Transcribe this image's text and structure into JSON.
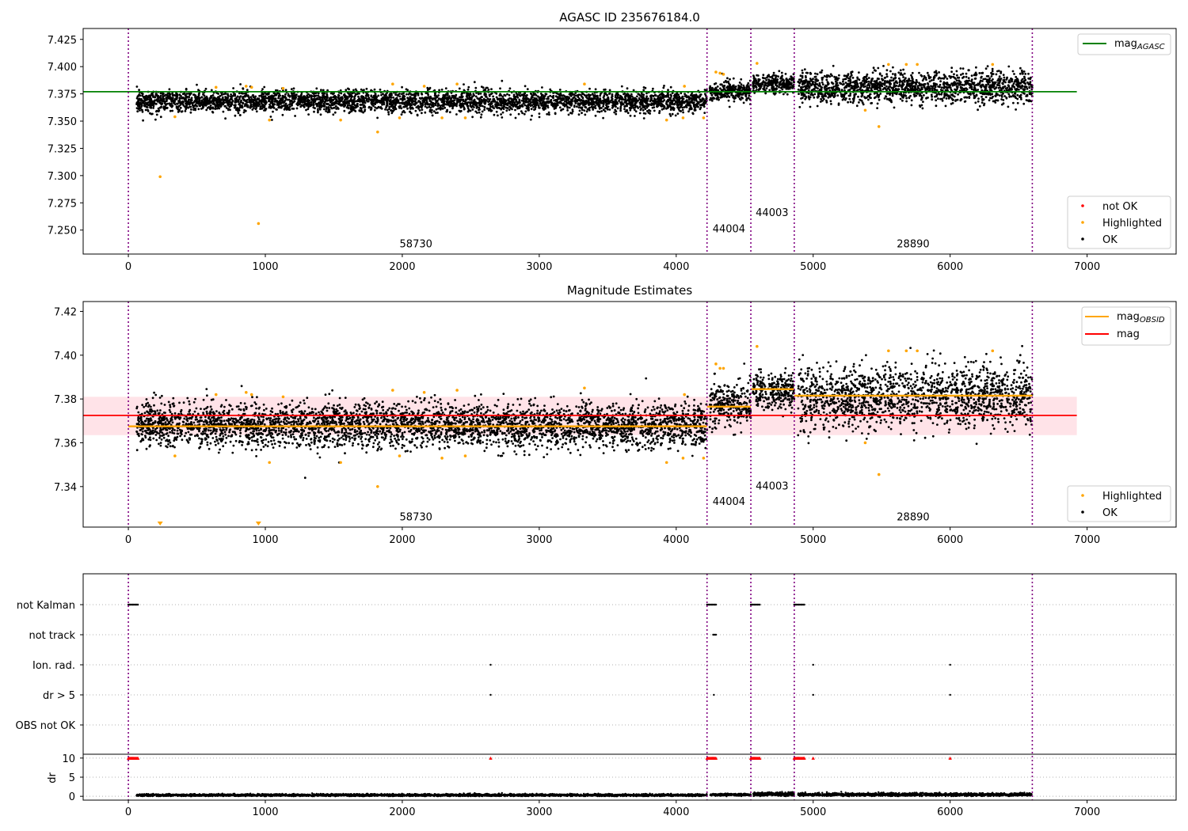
{
  "chart_data": [
    {
      "type": "scatter",
      "title": "AGASC ID 235676184.0",
      "xlim": [
        -330,
        7650
      ],
      "ylim": [
        7.228,
        7.435
      ],
      "x_ticks": [
        "0",
        "1000",
        "2000",
        "3000",
        "4000",
        "5000",
        "6000",
        "7000"
      ],
      "y_ticks": [
        "7.250",
        "7.275",
        "7.300",
        "7.325",
        "7.350",
        "7.375",
        "7.400",
        "7.425"
      ],
      "y_tick_values": [
        7.25,
        7.275,
        7.3,
        7.325,
        7.35,
        7.375,
        7.4,
        7.425
      ],
      "grid": false,
      "obs_boundaries": [
        0,
        4225,
        4545,
        4862,
        6600
      ],
      "obs_labels": [
        {
          "text": "58730",
          "x": 2100,
          "y": 7.234
        },
        {
          "text": "44004",
          "x": 4385,
          "y": 7.248
        },
        {
          "text": "44003",
          "x": 4700,
          "y": 7.263
        },
        {
          "text": "28890",
          "x": 5730,
          "y": 7.234
        }
      ],
      "segments": [
        {
          "x0": 60,
          "x1": 4225,
          "center": 7.368,
          "spread": 0.005
        },
        {
          "x0": 4245,
          "x1": 4545,
          "center": 7.377,
          "spread": 0.005
        },
        {
          "x0": 4560,
          "x1": 4862,
          "center": 7.384,
          "spread": 0.004
        },
        {
          "x0": 4890,
          "x1": 6600,
          "center": 7.381,
          "spread": 0.007
        }
      ],
      "lines": [
        {
          "name": "mag_AGASC",
          "y": 7.377,
          "x0": -330,
          "x1": 6925,
          "color": "#008000"
        }
      ],
      "highlighted": [
        {
          "x": 232,
          "y": 7.299
        },
        {
          "x": 340,
          "y": 7.354
        },
        {
          "x": 640,
          "y": 7.381
        },
        {
          "x": 860,
          "y": 7.382
        },
        {
          "x": 900,
          "y": 7.381
        },
        {
          "x": 950,
          "y": 7.256
        },
        {
          "x": 1030,
          "y": 7.351
        },
        {
          "x": 1130,
          "y": 7.38
        },
        {
          "x": 1550,
          "y": 7.351
        },
        {
          "x": 1820,
          "y": 7.34
        },
        {
          "x": 1930,
          "y": 7.384
        },
        {
          "x": 1980,
          "y": 7.353
        },
        {
          "x": 2160,
          "y": 7.382
        },
        {
          "x": 2290,
          "y": 7.353
        },
        {
          "x": 2400,
          "y": 7.384
        },
        {
          "x": 2460,
          "y": 7.353
        },
        {
          "x": 3330,
          "y": 7.384
        },
        {
          "x": 3930,
          "y": 7.351
        },
        {
          "x": 4050,
          "y": 7.353
        },
        {
          "x": 4060,
          "y": 7.382
        },
        {
          "x": 4200,
          "y": 7.353
        },
        {
          "x": 4290,
          "y": 7.395
        },
        {
          "x": 4320,
          "y": 7.394
        },
        {
          "x": 4345,
          "y": 7.393
        },
        {
          "x": 4590,
          "y": 7.403
        },
        {
          "x": 5380,
          "y": 7.36
        },
        {
          "x": 5480,
          "y": 7.345
        },
        {
          "x": 5550,
          "y": 7.402
        },
        {
          "x": 5680,
          "y": 7.402
        },
        {
          "x": 5760,
          "y": 7.402
        },
        {
          "x": 6310,
          "y": 7.402
        }
      ],
      "legend_top": {
        "position": "upper right",
        "entries": [
          {
            "label": "mag",
            "sub": "AGASC",
            "color": "#008000"
          }
        ]
      },
      "legend_bottom": {
        "position": "lower right",
        "entries": [
          {
            "label": "not OK",
            "color": "#ff0000"
          },
          {
            "label": "Highlighted",
            "color": "#ffa500"
          },
          {
            "label": "OK",
            "color": "#000000"
          }
        ]
      }
    },
    {
      "type": "scatter",
      "title": "Magnitude Estimates",
      "xlim": [
        -330,
        7650
      ],
      "ylim": [
        7.3215,
        7.4245
      ],
      "x_ticks": [
        "0",
        "1000",
        "2000",
        "3000",
        "4000",
        "5000",
        "6000",
        "7000"
      ],
      "y_ticks": [
        "7.34",
        "7.36",
        "7.38",
        "7.40",
        "7.42"
      ],
      "y_tick_values": [
        7.34,
        7.36,
        7.38,
        7.4,
        7.42
      ],
      "grid": false,
      "obs_boundaries": [
        0,
        4225,
        4545,
        4862,
        6600
      ],
      "obs_labels": [
        {
          "text": "58730",
          "x": 2100,
          "y": 7.3245
        },
        {
          "text": "44004",
          "x": 4385,
          "y": 7.3316
        },
        {
          "text": "44003",
          "x": 4700,
          "y": 7.3387
        },
        {
          "text": "28890",
          "x": 5730,
          "y": 7.3245
        }
      ],
      "segments": [
        {
          "x0": 60,
          "x1": 4225,
          "center": 7.368,
          "spread": 0.005
        },
        {
          "x0": 4245,
          "x1": 4545,
          "center": 7.377,
          "spread": 0.005
        },
        {
          "x0": 4560,
          "x1": 4862,
          "center": 7.384,
          "spread": 0.004
        },
        {
          "x0": 4890,
          "x1": 6600,
          "center": 7.381,
          "spread": 0.007
        }
      ],
      "mag_band": {
        "y0": 7.3635,
        "y1": 7.381,
        "x0": -330,
        "x1": 6925,
        "color": "#ffc0cb"
      },
      "lines": [
        {
          "name": "mag",
          "y": 7.3725,
          "x0": -330,
          "x1": 6925,
          "color": "#ff0000"
        }
      ],
      "obsid_mags": [
        {
          "x0": 0,
          "x1": 4225,
          "y": 7.3675
        },
        {
          "x0": 4225,
          "x1": 4545,
          "y": 7.3765
        },
        {
          "x0": 4545,
          "x1": 4862,
          "y": 7.3845
        },
        {
          "x0": 4862,
          "x1": 6600,
          "y": 7.3815
        }
      ],
      "highlighted": [
        {
          "x": 340,
          "y": 7.354
        },
        {
          "x": 640,
          "y": 7.382
        },
        {
          "x": 860,
          "y": 7.383
        },
        {
          "x": 900,
          "y": 7.382
        },
        {
          "x": 1030,
          "y": 7.351
        },
        {
          "x": 1130,
          "y": 7.381
        },
        {
          "x": 1550,
          "y": 7.351
        },
        {
          "x": 1820,
          "y": 7.34
        },
        {
          "x": 1930,
          "y": 7.384
        },
        {
          "x": 1980,
          "y": 7.354
        },
        {
          "x": 2160,
          "y": 7.383
        },
        {
          "x": 2290,
          "y": 7.353
        },
        {
          "x": 2400,
          "y": 7.384
        },
        {
          "x": 2460,
          "y": 7.354
        },
        {
          "x": 3330,
          "y": 7.385
        },
        {
          "x": 3930,
          "y": 7.351
        },
        {
          "x": 4050,
          "y": 7.353
        },
        {
          "x": 4060,
          "y": 7.382
        },
        {
          "x": 4200,
          "y": 7.353
        },
        {
          "x": 4290,
          "y": 7.396
        },
        {
          "x": 4320,
          "y": 7.394
        },
        {
          "x": 4345,
          "y": 7.394
        },
        {
          "x": 4590,
          "y": 7.404
        },
        {
          "x": 5380,
          "y": 7.36
        },
        {
          "x": 5480,
          "y": 7.3455
        },
        {
          "x": 5550,
          "y": 7.402
        },
        {
          "x": 5680,
          "y": 7.402
        },
        {
          "x": 5760,
          "y": 7.402
        },
        {
          "x": 6310,
          "y": 7.402
        }
      ],
      "off_scale_low": [
        {
          "x": 232
        },
        {
          "x": 950
        }
      ],
      "legend_top": {
        "position": "upper right",
        "entries": [
          {
            "label": "mag",
            "sub": "OBSID",
            "color": "#ffa500"
          },
          {
            "label": "mag",
            "sub": "",
            "color": "#ff0000"
          }
        ]
      },
      "legend_bottom": {
        "position": "lower right",
        "entries": [
          {
            "label": "Highlighted",
            "color": "#ffa500"
          },
          {
            "label": "OK",
            "color": "#000000"
          }
        ]
      }
    },
    {
      "type": "scatter",
      "xlim": [
        -330,
        7650
      ],
      "x_ticks": [
        "0",
        "1000",
        "2000",
        "3000",
        "4000",
        "5000",
        "6000",
        "7000"
      ],
      "obs_boundaries": [
        0,
        4225,
        4545,
        4862,
        6600
      ],
      "flag_labels": [
        "not Kalman",
        "not track",
        "Ion. rad.",
        "dr > 5",
        "OBS not OK"
      ],
      "flags": {
        "not Kalman": [
          [
            0,
            70
          ],
          [
            4225,
            4290
          ],
          [
            4545,
            4610
          ],
          [
            4862,
            4935
          ]
        ],
        "not track": [
          [
            4270,
            4290
          ]
        ],
        "Ion. rad.": [
          [
            2645,
            2645
          ],
          [
            5000,
            5000
          ],
          [
            6000,
            6000
          ]
        ],
        "dr > 5": [
          [
            2645,
            2645
          ],
          [
            4275,
            4275
          ],
          [
            5000,
            5000
          ],
          [
            6000,
            6000
          ]
        ],
        "OBS not OK": []
      },
      "dr": {
        "ylabel": "dr",
        "ylim": [
          -1,
          11
        ],
        "y_ticks": [
          "0",
          "5",
          "10"
        ],
        "y_tick_values": [
          0,
          5,
          10
        ],
        "clipped_at": 10,
        "clipped_ranges": [
          [
            0,
            70
          ],
          [
            4225,
            4290
          ],
          [
            4545,
            4610
          ],
          [
            4862,
            4935
          ],
          [
            2645,
            2645
          ],
          [
            5000,
            5000
          ],
          [
            6000,
            6000
          ]
        ],
        "segments": [
          {
            "x0": 60,
            "x1": 4225,
            "center": 0.3,
            "spread": 0.15
          },
          {
            "x0": 4245,
            "x1": 4545,
            "center": 0.4,
            "spread": 0.15
          },
          {
            "x0": 4560,
            "x1": 4862,
            "center": 0.55,
            "spread": 0.25
          },
          {
            "x0": 4890,
            "x1": 6600,
            "center": 0.45,
            "spread": 0.2
          }
        ]
      }
    }
  ]
}
